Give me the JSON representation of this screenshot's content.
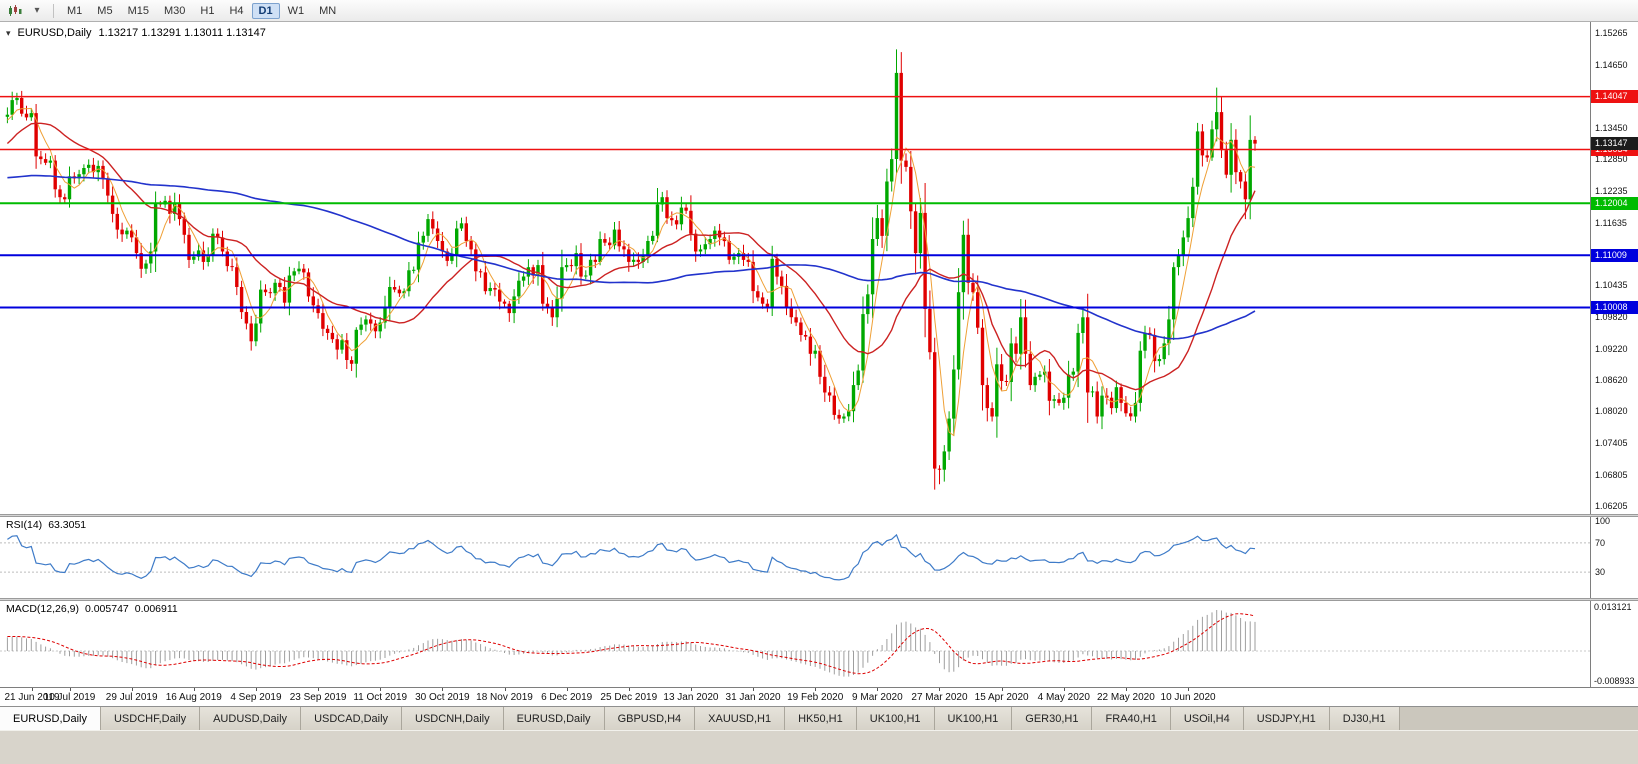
{
  "toolbar": {
    "timeframes": [
      "M1",
      "M5",
      "M15",
      "M30",
      "H1",
      "H4",
      "D1",
      "W1",
      "MN"
    ],
    "active_timeframe": "D1"
  },
  "chart": {
    "title": "EURUSD,Daily",
    "ohlc_display": "1.13217 1.13291 1.13011 1.13147",
    "current_price_label": "1.13147"
  },
  "chart_data": {
    "type": "candlestick",
    "symbol": "EURUSD",
    "timeframe": "Daily",
    "last_ohlc": {
      "open": 1.13217,
      "high": 1.13291,
      "low": 1.13011,
      "close": 1.13147
    },
    "colors": {
      "up": "#00A800",
      "down": "#E00000"
    },
    "y_axis": {
      "ticks": [
        "1.15265",
        "1.14650",
        "1.13450",
        "1.12850",
        "1.12235",
        "1.11635",
        "1.10435",
        "1.09820",
        "1.09220",
        "1.08620",
        "1.08020",
        "1.07405",
        "1.06805",
        "1.06205"
      ]
    },
    "levels": [
      {
        "value": 1.14047,
        "label": "1.14047",
        "color": "#EE1111",
        "line_width": 1.5
      },
      {
        "value": 1.13034,
        "label": "1.13034",
        "color": "#EE1111",
        "line_width": 1.5
      },
      {
        "value": 1.12004,
        "label": "1.12004",
        "color": "#00BB00",
        "line_width": 2
      },
      {
        "value": 1.11009,
        "label": "1.11009",
        "color": "#0000DD",
        "line_width": 2
      },
      {
        "value": 1.10008,
        "label": "1.10008",
        "color": "#0000DD",
        "line_width": 2
      }
    ],
    "overlays": [
      {
        "name": "ma-fast-line",
        "period": 5,
        "color": "#EFA036",
        "width": 1
      },
      {
        "name": "ma-medium-line",
        "period": 20,
        "color": "#CC2222",
        "width": 1.4
      },
      {
        "name": "ma-slow-line",
        "period": 90,
        "color": "#2233CC",
        "width": 1.6
      }
    ],
    "warmup_closes": [
      1.1325,
      1.133,
      1.1322,
      1.131,
      1.1295,
      1.1288,
      1.1292,
      1.13,
      1.1312,
      1.1305,
      1.1298,
      1.1288,
      1.1275,
      1.1268,
      1.1262,
      1.127,
      1.1282,
      1.1295,
      1.1305,
      1.1318,
      1.13,
      1.1285,
      1.1262,
      1.124,
      1.1228,
      1.1235,
      1.1242,
      1.125,
      1.1238,
      1.1225,
      1.1218,
      1.1222,
      1.123,
      1.1245,
      1.1252,
      1.124,
      1.1228,
      1.1215,
      1.1205,
      1.1198,
      1.1205,
      1.1215,
      1.1222,
      1.1212,
      1.1202,
      1.1192,
      1.1185,
      1.1178,
      1.1185,
      1.1195,
      1.1202,
      1.1195,
      1.1185,
      1.1175,
      1.1168,
      1.116,
      1.1155,
      1.1162,
      1.1172,
      1.118,
      1.1175,
      1.1168,
      1.1162,
      1.117,
      1.1182,
      1.1192,
      1.1185,
      1.1178,
      1.119,
      1.1205,
      1.1215,
      1.1222,
      1.1212,
      1.1225,
      1.124,
      1.1255,
      1.127,
      1.1285,
      1.1302,
      1.1318,
      1.1335,
      1.1352,
      1.1368,
      1.138,
      1.1372,
      1.1362,
      1.1355,
      1.1348,
      1.1358,
      1.1366
    ],
    "closes": [
      1.137,
      1.1398,
      1.1402,
      1.1372,
      1.1365,
      1.1373,
      1.129,
      1.1285,
      1.1278,
      1.1282,
      1.1227,
      1.1212,
      1.1208,
      1.1252,
      1.1248,
      1.1256,
      1.1268,
      1.1274,
      1.126,
      1.1272,
      1.1248,
      1.1215,
      1.118,
      1.115,
      1.1141,
      1.1148,
      1.1135,
      1.1105,
      1.1075,
      1.1085,
      1.1108,
      1.12,
      1.1198,
      1.1205,
      1.118,
      1.1202,
      1.117,
      1.114,
      1.1092,
      1.1098,
      1.111,
      1.1088,
      1.11,
      1.1142,
      1.1135,
      1.1108,
      1.108,
      1.1078,
      1.104,
      1.0992,
      1.097,
      1.0936,
      1.097,
      1.1035,
      1.103,
      1.1028,
      1.1048,
      1.104,
      1.101,
      1.1062,
      1.107,
      1.1075,
      1.1068,
      1.1022,
      1.1005,
      1.099,
      1.096,
      1.0952,
      1.094,
      1.092,
      1.0938,
      1.09,
      1.0893,
      1.0958,
      1.0968,
      1.0978,
      1.097,
      1.0955,
      1.0972,
      1.1002,
      1.104,
      1.1035,
      1.1028,
      1.1032,
      1.1072,
      1.1073,
      1.1125,
      1.1138,
      1.117,
      1.1152,
      1.1128,
      1.1108,
      1.109,
      1.1102,
      1.1152,
      1.1162,
      1.1128,
      1.1112,
      1.107,
      1.1068,
      1.1032,
      1.1038,
      1.1035,
      1.1012,
      1.1008,
      1.099,
      1.1022,
      1.1052,
      1.106,
      1.1078,
      1.1062,
      1.1082,
      1.1008,
      1.1,
      1.0982,
      1.1018,
      1.1078,
      1.1082,
      1.108,
      1.1105,
      1.106,
      1.1062,
      1.1092,
      1.1088,
      1.1132,
      1.1125,
      1.112,
      1.115,
      1.1118,
      1.1112,
      1.1088,
      1.1092,
      1.1088,
      1.11,
      1.1128,
      1.1138,
      1.1198,
      1.1212,
      1.1172,
      1.1168,
      1.116,
      1.1192,
      1.1186,
      1.1142,
      1.1108,
      1.1112,
      1.1122,
      1.1132,
      1.1148,
      1.1135,
      1.1128,
      1.1092,
      1.1098,
      1.1105,
      1.1092,
      1.1088,
      1.1032,
      1.102,
      1.1008,
      1.1002,
      1.1094,
      1.106,
      1.1042,
      1.1002,
      1.0982,
      1.0972,
      1.0948,
      1.0945,
      1.0912,
      1.0918,
      1.0868,
      1.0838,
      1.0832,
      1.0795,
      1.0788,
      1.0792,
      1.0802,
      1.0852,
      1.088,
      1.0988,
      1.1026,
      1.1132,
      1.1172,
      1.1138,
      1.1242,
      1.1285,
      1.145,
      1.1282,
      1.127,
      1.1185,
      1.1105,
      1.1182,
      1.0998,
      1.0915,
      1.0692,
      1.069,
      1.0725,
      1.0788,
      1.0882,
      1.103,
      1.114,
      1.1048,
      1.103,
      1.0962,
      1.0852,
      1.0808,
      1.0792,
      1.0892,
      1.086,
      1.0858,
      1.0932,
      1.0912,
      1.0982,
      1.0912,
      1.0852,
      1.0868,
      1.0872,
      1.0878,
      1.0822,
      1.0825,
      1.0818,
      1.0828,
      1.0872,
      1.0878,
      1.0952,
      1.0982,
      1.0838,
      1.084,
      1.0792,
      1.0832,
      1.0828,
      1.0808,
      1.0848,
      1.0818,
      1.0798,
      1.0792,
      1.0818,
      1.0918,
      1.0952,
      1.0948,
      1.0898,
      1.0902,
      1.0932,
      1.0978,
      1.1078,
      1.1102,
      1.1135,
      1.1172,
      1.1232,
      1.1338,
      1.1292,
      1.1288,
      1.1342,
      1.1375,
      1.1302,
      1.1255,
      1.1322,
      1.126,
      1.1242,
      1.1208,
      1.13217,
      1.13147
    ],
    "extremes": {
      "2": {
        "high": 1.1412
      },
      "72": {
        "low": 1.0879
      },
      "174": {
        "low": 1.0778
      },
      "186": {
        "high": 1.1495
      },
      "194": {
        "low": 1.0652
      },
      "195": {
        "low": 1.0662
      },
      "253": {
        "high": 1.1422
      },
      "259": {
        "low": 1.117
      },
      "261": {
        "high": 1.13291,
        "low": 1.13011
      }
    }
  },
  "rsi": {
    "label": "RSI(14)",
    "value": "63.3051",
    "scale": [
      "100",
      "70",
      "30"
    ],
    "levels": [
      70,
      30
    ],
    "color": "#3E7BC8"
  },
  "macd": {
    "label": "MACD(12,26,9)",
    "value_main": "0.005747",
    "value_signal": "0.006911",
    "scale_top": "0.013121",
    "scale_bottom": "-0.008933",
    "hist_color": "#9E9E9E",
    "signal_color": "#DD0000"
  },
  "date_axis": {
    "labels": [
      "21 Jun 2019",
      "10 Jul 2019",
      "29 Jul 2019",
      "16 Aug 2019",
      "4 Sep 2019",
      "23 Sep 2019",
      "11 Oct 2019",
      "30 Oct 2019",
      "18 Nov 2019",
      "6 Dec 2019",
      "25 Dec 2019",
      "13 Jan 2020",
      "31 Jan 2020",
      "19 Feb 2020",
      "9 Mar 2020",
      "27 Mar 2020",
      "15 Apr 2020",
      "4 May 2020",
      "22 May 2020",
      "10 Jun 2020"
    ]
  },
  "tabs": {
    "items": [
      "EURUSD,Daily",
      "USDCHF,Daily",
      "AUDUSD,Daily",
      "USDCAD,Daily",
      "USDCNH,Daily",
      "EURUSD,Daily",
      "GBPUSD,H4",
      "XAUUSD,H1",
      "HK50,H1",
      "UK100,H1",
      "UK100,H1",
      "GER30,H1",
      "FRA40,H1",
      "USOil,H4",
      "USDJPY,H1",
      "DJ30,H1"
    ],
    "active_index": 0
  }
}
